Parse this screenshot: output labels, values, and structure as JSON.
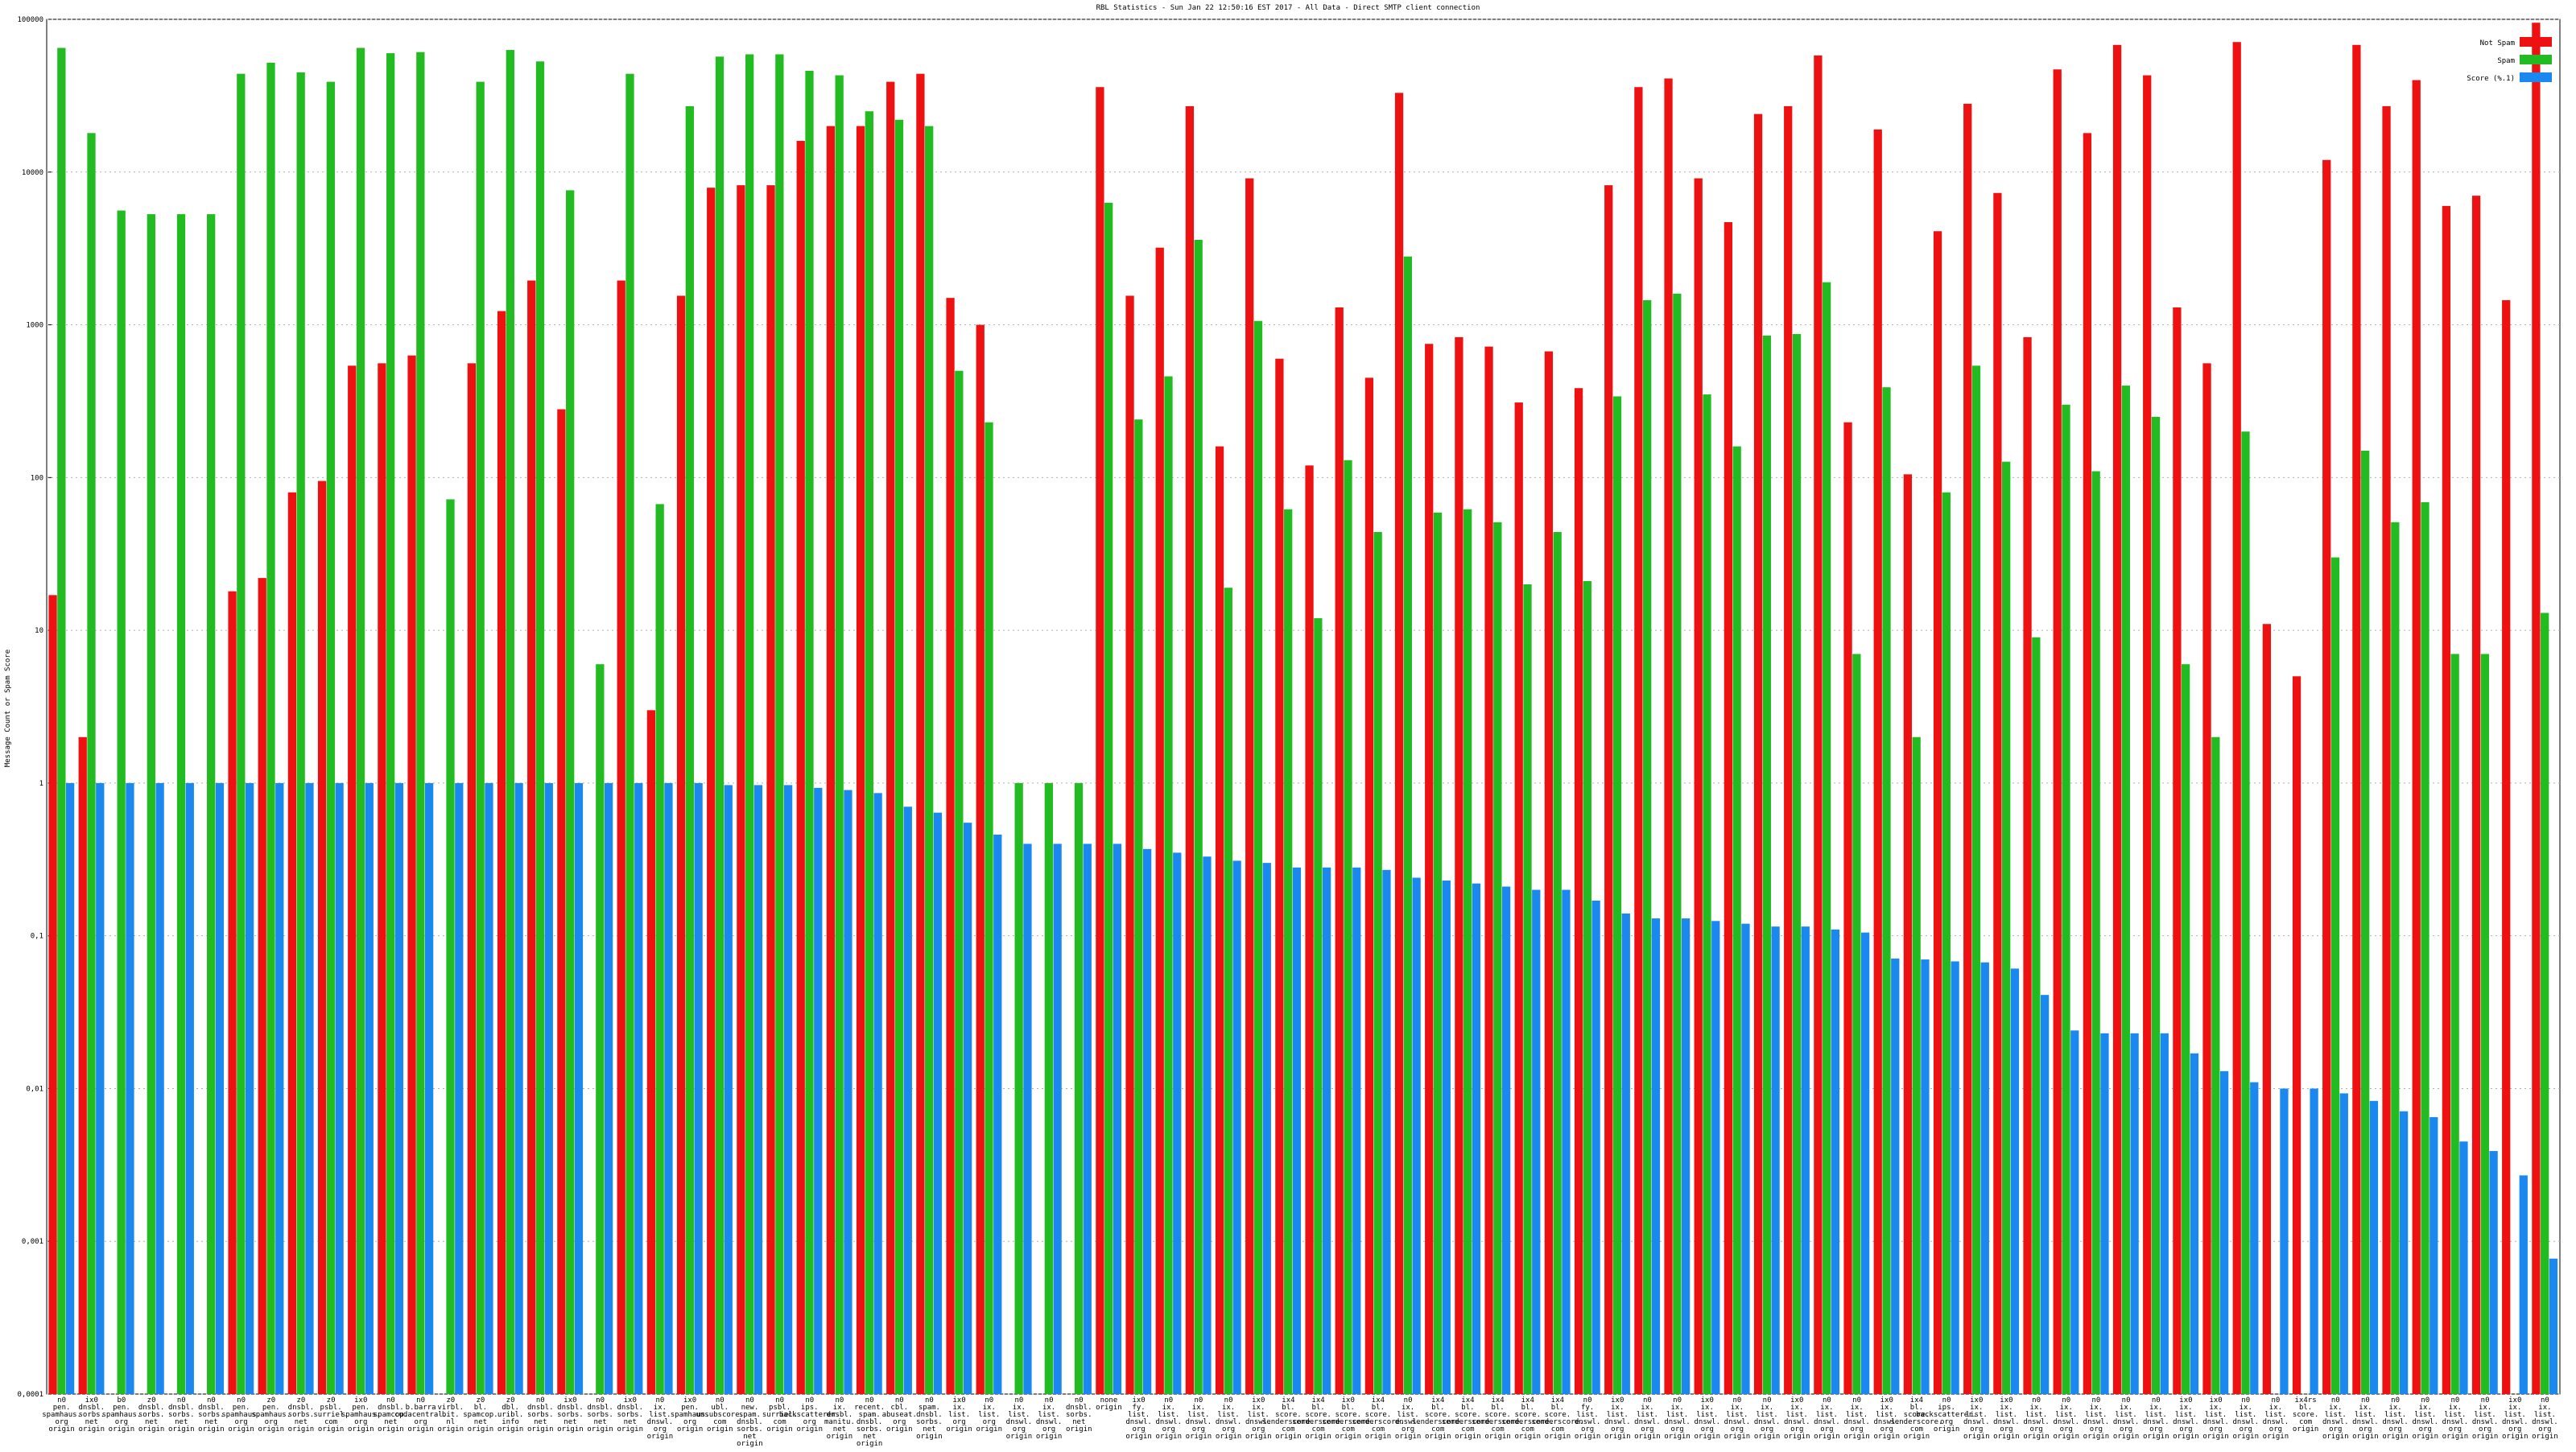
{
  "chart_data": {
    "type": "bar",
    "title": "RBL Statistics - Sun Jan 22 12:50:16 EST 2017 - All Data - Direct SMTP client connection",
    "y_label": "Message Count or Spam Score",
    "log_scale": true,
    "grid": true,
    "legend": "top-right",
    "ylim": [
      0.0001,
      100000
    ],
    "yticks": [
      100000,
      10000,
      1000,
      100,
      10,
      1,
      {
        "value": 0.1,
        "label": "0,1"
      },
      {
        "value": 0.01,
        "label": "0,01"
      },
      {
        "value": 0.001,
        "label": "0,001"
      },
      {
        "value": 0.0001,
        "label": "0,0001"
      }
    ],
    "categories": [
      [
        "n0",
        "pen.",
        "spamhaus.",
        "org",
        "origin"
      ],
      [
        "ix0",
        "dnsbl.",
        "sorbs.",
        "net",
        "origin"
      ],
      [
        "b0",
        "pen.",
        "spamhaus.",
        "org",
        "origin"
      ],
      [
        "z0",
        "dnsbl.",
        "sorbs.",
        "net",
        "origin"
      ],
      [
        "n0",
        "dnsbl.",
        "sorbs.",
        "net",
        "origin"
      ],
      [
        "n0",
        "dnsbl.",
        "sorbs.",
        "net",
        "origin"
      ],
      [
        "n0",
        "pen.",
        "spamhaus.",
        "org",
        "origin"
      ],
      [
        "z0",
        "pen.",
        "spamhaus.",
        "org",
        "origin"
      ],
      [
        "z0",
        "dnsbl.",
        "sorbs.",
        "net",
        "origin"
      ],
      [
        "z0",
        "psbl.",
        "surriel.",
        "com",
        "origin"
      ],
      [
        "ix0",
        "pen.",
        "spamhaus.",
        "org",
        "origin"
      ],
      [
        "n0",
        "dnsbl.",
        "spamcop.",
        "net",
        "origin"
      ],
      [
        "n0",
        "b.barra",
        "cudacentral.",
        "org",
        "origin"
      ],
      [
        "z0",
        "virbl.",
        "bit.",
        "nl",
        "origin"
      ],
      [
        "z0",
        "bl.",
        "spamcop.",
        "net",
        "origin"
      ],
      [
        "z0",
        "dbl.",
        "uribl.",
        "info",
        "origin"
      ],
      [
        "n0",
        "dnsbl.",
        "sorbs.",
        "net",
        "origin"
      ],
      [
        "ix0",
        "dnsbl.",
        "sorbs.",
        "net",
        "origin"
      ],
      [
        "n0",
        "dnsbl.",
        "sorbs.",
        "net",
        "origin"
      ],
      [
        "ix0",
        "dnsbl.",
        "sorbs.",
        "net",
        "origin"
      ],
      [
        "n0",
        "ix.",
        "list.",
        "dnswl.",
        "org",
        "origin"
      ],
      [
        "ix0",
        "pen.",
        "spamhaus.",
        "org",
        "origin"
      ],
      [
        "n0",
        "ubl.",
        "unsubscore.",
        "com",
        "origin"
      ],
      [
        "n0",
        "new.",
        "spam.",
        "dnsbl.",
        "sorbs.",
        "net",
        "origin"
      ],
      [
        "n0",
        "psbl.",
        "surriel.",
        "com",
        "origin"
      ],
      [
        "n0",
        "ips.",
        "backscatterer.",
        "org",
        "origin"
      ],
      [
        "n0",
        "ix.",
        "dnsbl.",
        "manitu.",
        "net",
        "origin"
      ],
      [
        "n0",
        "recent.",
        "spam.",
        "dnsbl.",
        "sorbs.",
        "net",
        "origin"
      ],
      [
        "n0",
        "cbl.",
        "abuseat.",
        "org",
        "origin"
      ],
      [
        "n0",
        "spam.",
        "dnsbl.",
        "sorbs.",
        "net",
        "origin"
      ],
      [
        "ix0",
        "ix.",
        "list.",
        "org",
        "origin"
      ],
      [
        "n0",
        "ix.",
        "list.",
        "org",
        "origin"
      ],
      [
        "n0",
        "ix.",
        "list.",
        "dnswl.",
        "org",
        "origin"
      ],
      [
        "n0",
        "ix.",
        "list.",
        "dnswl.",
        "org",
        "origin"
      ],
      [
        "n0",
        "dnsbl.",
        "sorbs.",
        "net",
        "origin"
      ],
      [
        "none",
        "origin"
      ],
      [
        "ix0",
        "fy.",
        "list.",
        "dnswl.",
        "org",
        "origin"
      ],
      [
        "n0",
        "ix.",
        "list.",
        "dnswl.",
        "org",
        "origin"
      ],
      [
        "n0",
        "ix.",
        "list.",
        "dnswl.",
        "org",
        "origin"
      ],
      [
        "n0",
        "ix.",
        "list.",
        "dnswl.",
        "org",
        "origin"
      ],
      [
        "ix0",
        "ix.",
        "list.",
        "dnswl.",
        "org",
        "origin"
      ],
      [
        "ix4",
        "bl.",
        "score.",
        "senderscore.",
        "com",
        "origin"
      ],
      [
        "ix4",
        "bl.",
        "score.",
        "senderscore.",
        "com",
        "origin"
      ],
      [
        "ix0",
        "bl.",
        "score.",
        "senderscore.",
        "com",
        "origin"
      ],
      [
        "ix4",
        "bl.",
        "score.",
        "senderscore.",
        "com",
        "origin"
      ],
      [
        "n0",
        "ix.",
        "list.",
        "dnswl.",
        "org",
        "origin"
      ],
      [
        "ix4",
        "bl.",
        "score.",
        "senderscore.",
        "com",
        "origin"
      ],
      [
        "ix4",
        "bl.",
        "score.",
        "senderscore.",
        "com",
        "origin"
      ],
      [
        "ix4",
        "bl.",
        "score.",
        "senderscore.",
        "com",
        "origin"
      ],
      [
        "ix4",
        "bl.",
        "score.",
        "senderscore.",
        "com",
        "origin"
      ],
      [
        "ix4",
        "bl.",
        "score.",
        "senderscore.",
        "com",
        "origin"
      ],
      [
        "n0",
        "fy.",
        "list.",
        "dnswl.",
        "org",
        "origin"
      ],
      [
        "ix0",
        "ix.",
        "list.",
        "dnswl.",
        "org",
        "origin"
      ],
      [
        "n0",
        "ix.",
        "list.",
        "dnswl.",
        "org",
        "origin"
      ],
      [
        "n0",
        "ix.",
        "list.",
        "dnswl.",
        "org",
        "origin"
      ],
      [
        "ix0",
        "ix.",
        "list.",
        "dnswl.",
        "org",
        "origin"
      ],
      [
        "n0",
        "ix.",
        "list.",
        "dnswl.",
        "org",
        "origin"
      ],
      [
        "n0",
        "ix.",
        "list.",
        "dnswl.",
        "org",
        "origin"
      ],
      [
        "ix0",
        "ix.",
        "list.",
        "dnswl.",
        "org",
        "origin"
      ],
      [
        "n0",
        "ix.",
        "list.",
        "dnswl.",
        "org",
        "origin"
      ],
      [
        "n0",
        "ix.",
        "list.",
        "dnswl.",
        "org",
        "origin"
      ],
      [
        "ix0",
        "ix.",
        "list.",
        "dnswl.",
        "org",
        "origin"
      ],
      [
        "ix4",
        "bl.",
        "score.",
        "senderscore.",
        "com",
        "origin"
      ],
      [
        "n0",
        "ips.",
        "backscatterer.",
        "org",
        "origin"
      ],
      [
        "ix0",
        "ix.",
        "list.",
        "dnswl.",
        "org",
        "origin"
      ],
      [
        "ix0",
        "ix.",
        "list.",
        "dnswl.",
        "org",
        "origin"
      ],
      [
        "n0",
        "ix.",
        "list.",
        "dnswl.",
        "org",
        "origin"
      ],
      [
        "n0",
        "ix.",
        "list.",
        "dnswl.",
        "org",
        "origin"
      ],
      [
        "n0",
        "ix.",
        "list.",
        "dnswl.",
        "org",
        "origin"
      ],
      [
        "n0",
        "ix.",
        "list.",
        "dnswl.",
        "org",
        "origin"
      ],
      [
        "n0",
        "ix.",
        "list.",
        "dnswl.",
        "org",
        "origin"
      ],
      [
        "ix0",
        "ix.",
        "list.",
        "dnswl.",
        "org",
        "origin"
      ],
      [
        "ix0",
        "ix.",
        "list.",
        "dnswl.",
        "org",
        "origin"
      ],
      [
        "n0",
        "ix.",
        "list.",
        "dnswl.",
        "org",
        "origin"
      ],
      [
        "n0",
        "ix.",
        "list.",
        "dnswl.",
        "org",
        "origin"
      ],
      [
        "ix4rs",
        "bl.",
        "score.",
        "com",
        "origin"
      ],
      [
        "n0",
        "ix.",
        "list.",
        "dnswl.",
        "org",
        "origin"
      ],
      [
        "n0",
        "ix.",
        "list.",
        "dnswl.",
        "org",
        "origin"
      ],
      [
        "n0",
        "ix.",
        "list.",
        "dnswl.",
        "org",
        "origin"
      ],
      [
        "n0",
        "ix.",
        "list.",
        "dnswl.",
        "org",
        "origin"
      ],
      [
        "n0",
        "ix.",
        "list.",
        "dnswl.",
        "org",
        "origin"
      ],
      [
        "n0",
        "ix.",
        "list.",
        "dnswl.",
        "org",
        "origin"
      ],
      [
        "ix0",
        "ix.",
        "list.",
        "dnswl.",
        "org",
        "origin"
      ],
      [
        "n0",
        "ix.",
        "list.",
        "dnswl.",
        "org",
        "origin"
      ]
    ],
    "series": [
      {
        "name": "Not Spam",
        "color": "#ee1111",
        "values": [
          17,
          2,
          null,
          null,
          null,
          null,
          18,
          22,
          80,
          95,
          540,
          560,
          630,
          null,
          560,
          1230,
          1950,
          280,
          null,
          1950,
          3,
          1550,
          7900,
          8200,
          8200,
          16000,
          20000,
          20000,
          39000,
          44000,
          1500,
          1000,
          null,
          null,
          null,
          36000,
          1550,
          3200,
          27000,
          160,
          9100,
          600,
          120,
          1300,
          450,
          33000,
          750,
          830,
          720,
          310,
          670,
          385,
          8200,
          36000,
          41000,
          9100,
          4700,
          24000,
          27000,
          58000,
          230,
          19000,
          105,
          4100,
          28000,
          7300,
          830,
          47000,
          18000,
          68000,
          43000,
          1300,
          560,
          71000,
          11,
          5,
          12000,
          68000,
          27000,
          40000,
          6000,
          7000,
          1450,
          95000
        ]
      },
      {
        "name": "Spam",
        "color": "#22bb22",
        "values": [
          65000,
          18000,
          5600,
          5300,
          5300,
          5300,
          44000,
          52000,
          45000,
          39000,
          65000,
          60000,
          61000,
          72,
          39000,
          63000,
          53000,
          7600,
          6,
          44000,
          67,
          27000,
          57000,
          59000,
          59000,
          46000,
          43000,
          25000,
          22000,
          20000,
          500,
          230,
          1,
          1,
          1,
          6300,
          240,
          460,
          3600,
          19,
          1060,
          62,
          12,
          130,
          44,
          2800,
          59,
          62,
          51,
          20,
          44,
          21,
          340,
          1450,
          1600,
          350,
          160,
          850,
          870,
          1900,
          7,
          390,
          2,
          80,
          540,
          127,
          9,
          300,
          110,
          400,
          250,
          6,
          2,
          200,
          null,
          null,
          30,
          150,
          51,
          69,
          7,
          7,
          null,
          13
        ]
      },
      {
        "name": "Score (%.1)",
        "color": "#1a88ee",
        "values": [
          1,
          1,
          1,
          1,
          1,
          1,
          1,
          1,
          1,
          1,
          1,
          1,
          1,
          1,
          1,
          1,
          1,
          1,
          1,
          1,
          1,
          1,
          0.97,
          0.97,
          0.97,
          0.93,
          0.9,
          0.86,
          0.7,
          0.64,
          0.55,
          0.46,
          0.4,
          0.4,
          0.4,
          0.4,
          0.37,
          0.35,
          0.33,
          0.31,
          0.3,
          0.28,
          0.28,
          0.28,
          0.27,
          0.24,
          0.23,
          0.22,
          0.21,
          0.2,
          0.2,
          0.17,
          0.14,
          0.13,
          0.13,
          0.125,
          0.12,
          0.115,
          0.115,
          0.11,
          0.105,
          0.071,
          0.07,
          0.068,
          0.067,
          0.061,
          0.041,
          0.024,
          0.023,
          0.023,
          0.023,
          0.017,
          0.013,
          0.011,
          0.01,
          0.01,
          0.0093,
          0.0083,
          0.0071,
          0.0065,
          0.0045,
          0.0039,
          0.0027,
          0.00077
        ]
      }
    ]
  }
}
